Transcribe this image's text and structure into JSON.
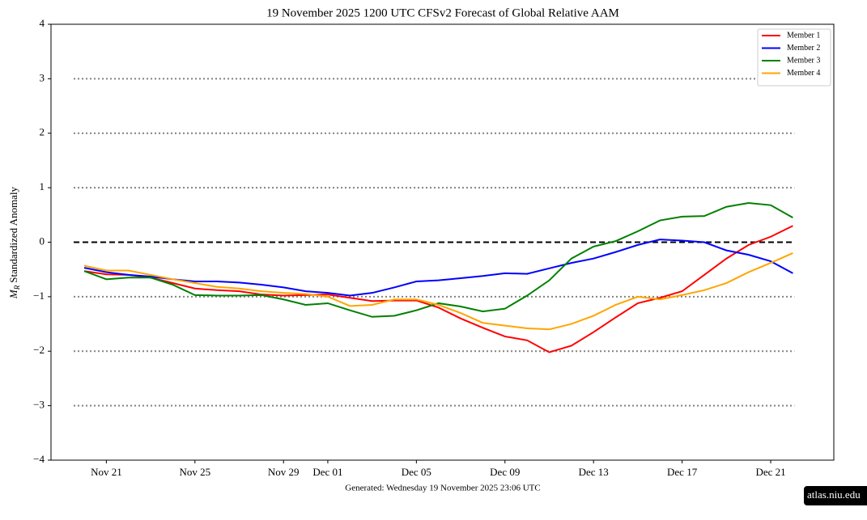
{
  "chart_data": {
    "type": "line",
    "title": "19  November  2025 1200 UTC   CFSv2 Forecast of Global Relative AAM",
    "ylabel_symbol": "M",
    "ylabel_subscript": "R",
    "ylabel": "Standardized Anomaly",
    "footer": "Generated: Wednesday  19  November  2025  23:06 UTC",
    "badge": "atlas.niu.edu",
    "x": [
      "Nov 20",
      "Nov 21",
      "Nov 22",
      "Nov 23",
      "Nov 24",
      "Nov 25",
      "Nov 26",
      "Nov 27",
      "Nov 28",
      "Nov 29",
      "Nov 30",
      "Dec 01",
      "Dec 02",
      "Dec 03",
      "Dec 04",
      "Dec 05",
      "Dec 06",
      "Dec 07",
      "Dec 08",
      "Dec 09",
      "Dec 10",
      "Dec 11",
      "Dec 12",
      "Dec 13",
      "Dec 14",
      "Dec 15",
      "Dec 16",
      "Dec 17",
      "Dec 18",
      "Dec 19",
      "Dec 20",
      "Dec 21",
      "Dec 22"
    ],
    "xticks": [
      "Nov 21",
      "Nov 25",
      "Nov 29",
      "Dec 01",
      "Dec 05",
      "Dec 09",
      "Dec 13",
      "Dec 17",
      "Dec 21"
    ],
    "ylim": [
      -4,
      4
    ],
    "yticks": [
      {
        "value": -4,
        "label": "−4"
      },
      {
        "value": -3,
        "label": "−3"
      },
      {
        "value": -2,
        "label": "−2"
      },
      {
        "value": -1,
        "label": "−1"
      },
      0,
      1,
      2,
      3,
      4
    ],
    "dotted_lines": [
      -3,
      -2,
      -1,
      1,
      2,
      3
    ],
    "dashed_line": 0,
    "legend": "upper right",
    "series": [
      {
        "name": "Member 1",
        "color": "#ff0000",
        "values": [
          -0.53,
          -0.59,
          -0.6,
          -0.65,
          -0.75,
          -0.85,
          -0.88,
          -0.9,
          -0.96,
          -0.98,
          -0.97,
          -0.96,
          -1.02,
          -1.08,
          -1.07,
          -1.07,
          -1.2,
          -1.4,
          -1.57,
          -1.73,
          -1.8,
          -2.02,
          -1.9,
          -1.65,
          -1.38,
          -1.12,
          -1.02,
          -0.9,
          -0.6,
          -0.3,
          -0.05,
          0.1,
          0.3
        ]
      },
      {
        "name": "Member 2",
        "color": "#0000ff",
        "values": [
          -0.47,
          -0.55,
          -0.6,
          -0.63,
          -0.68,
          -0.72,
          -0.72,
          -0.74,
          -0.78,
          -0.83,
          -0.9,
          -0.93,
          -0.98,
          -0.93,
          -0.83,
          -0.72,
          -0.7,
          -0.66,
          -0.62,
          -0.57,
          -0.58,
          -0.48,
          -0.38,
          -0.3,
          -0.18,
          -0.05,
          0.05,
          0.03,
          0,
          -0.15,
          -0.23,
          -0.35,
          -0.57
        ]
      },
      {
        "name": "Member 3",
        "color": "#008000",
        "values": [
          -0.53,
          -0.68,
          -0.65,
          -0.65,
          -0.78,
          -0.97,
          -0.98,
          -0.98,
          -0.97,
          -1.05,
          -1.15,
          -1.12,
          -1.25,
          -1.37,
          -1.35,
          -1.25,
          -1.12,
          -1.18,
          -1.27,
          -1.22,
          -0.98,
          -0.7,
          -0.3,
          -0.08,
          0.02,
          0.2,
          0.4,
          0.47,
          0.48,
          0.65,
          0.72,
          0.68,
          0.45
        ]
      },
      {
        "name": "Member 4",
        "color": "#ffa500",
        "values": [
          -0.43,
          -0.52,
          -0.52,
          -0.6,
          -0.68,
          -0.75,
          -0.82,
          -0.85,
          -0.9,
          -0.93,
          -0.95,
          -1.0,
          -1.17,
          -1.15,
          -1.05,
          -1.05,
          -1.15,
          -1.3,
          -1.48,
          -1.53,
          -1.58,
          -1.6,
          -1.5,
          -1.35,
          -1.15,
          -1.0,
          -1.05,
          -0.97,
          -0.88,
          -0.75,
          -0.55,
          -0.38,
          -0.2
        ]
      }
    ]
  }
}
